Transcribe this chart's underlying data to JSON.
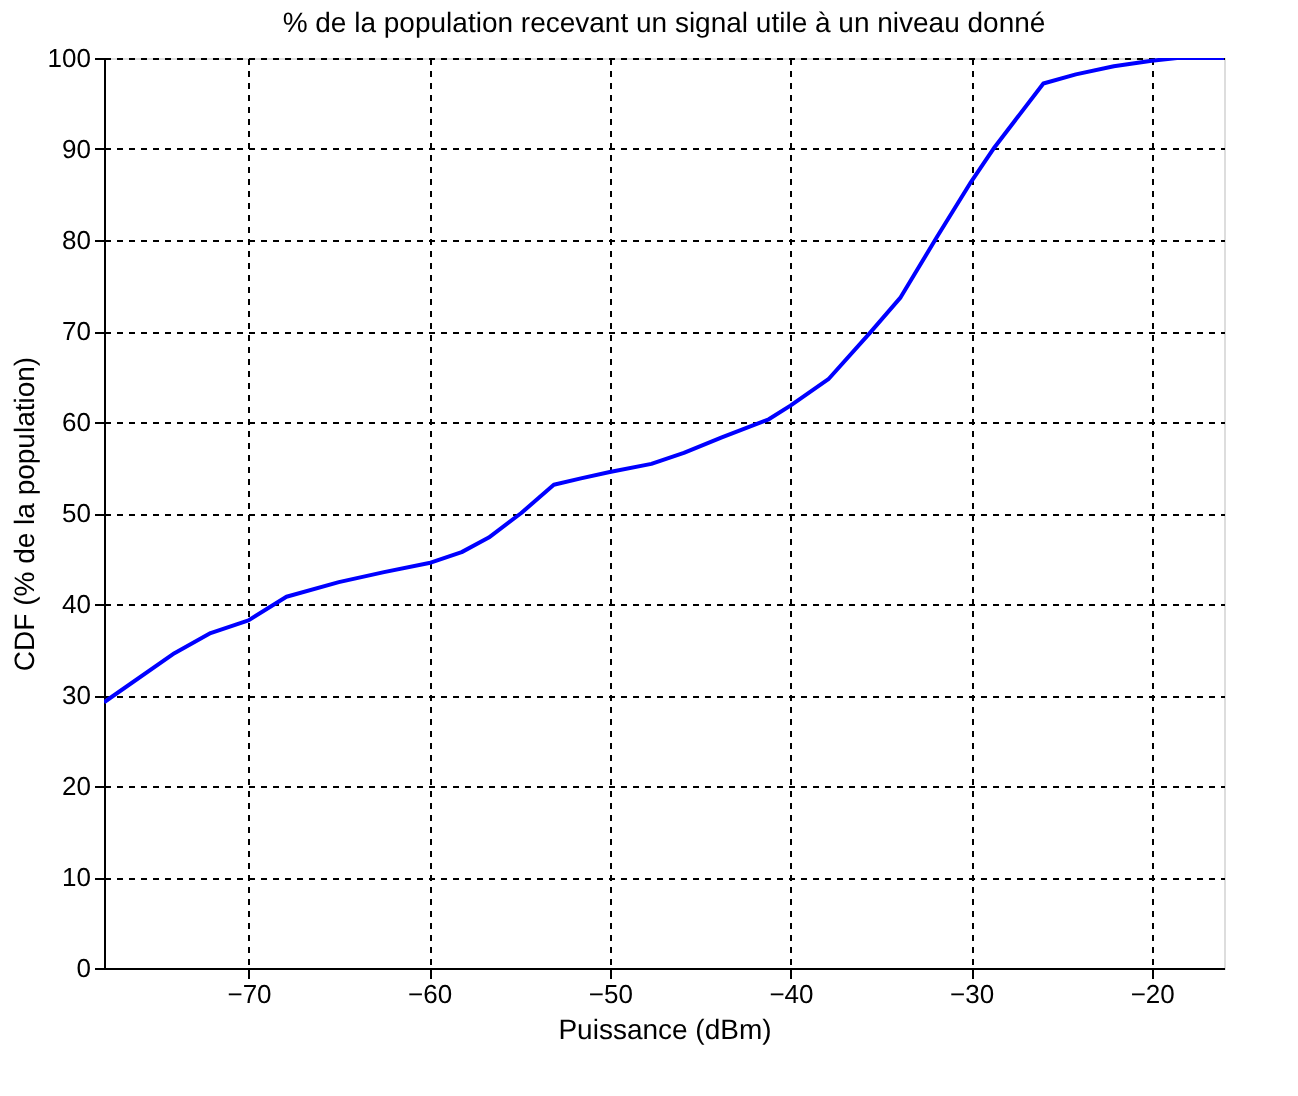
{
  "chart_data": {
    "type": "line",
    "title": "% de la population recevant un signal utile à un niveau donné",
    "xlabel": "Puissance (dBm)",
    "ylabel": "CDF (% de la population)",
    "x": [
      -78,
      -74.1,
      -72.1,
      -70,
      -67.9,
      -65,
      -62.5,
      -60,
      -58.2,
      -56.7,
      -54.9,
      -53.1,
      -51.6,
      -50,
      -47.7,
      -45.9,
      -43.8,
      -41.2,
      -40,
      -37.9,
      -35.6,
      -33.9,
      -31.9,
      -30,
      -28.7,
      -26,
      -24.2,
      -22.1,
      -20,
      -18.6,
      -16
    ],
    "series": [
      {
        "color": "#0000ff",
        "values": [
          29.2,
          34.6,
          36.8,
          38.2,
          40.8,
          42.4,
          43.5,
          44.5,
          45.7,
          47.3,
          50.0,
          53.1,
          53.8,
          54.5,
          55.4,
          56.6,
          58.3,
          60.3,
          61.8,
          64.7,
          69.8,
          73.7,
          80.3,
          86.4,
          90.2,
          97.2,
          98.2,
          99.1,
          99.7,
          100,
          100
        ]
      }
    ],
    "xlim": [
      -78,
      -16
    ],
    "xticks": [
      -70,
      -60,
      -50,
      -40,
      -30,
      -20
    ],
    "ylim": [
      0,
      100
    ],
    "yticks": [
      0,
      10,
      20,
      30,
      40,
      50,
      60,
      70,
      80,
      90,
      100
    ],
    "grid": true,
    "line_style": "solid",
    "marker": "none"
  }
}
